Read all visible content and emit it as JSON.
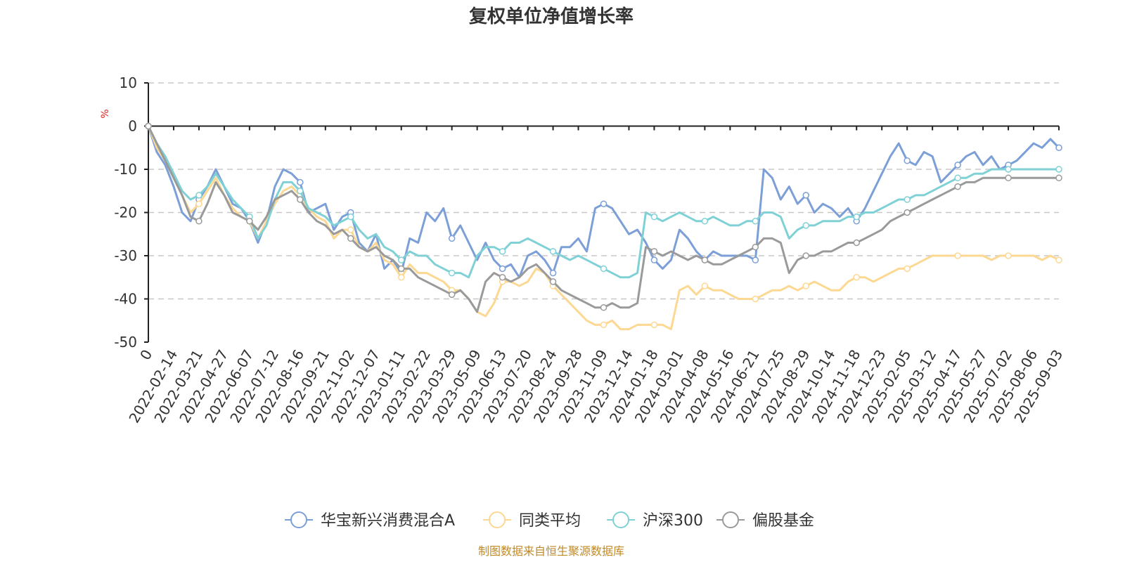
{
  "chart_data": {
    "type": "line",
    "title": "复权单位净值增长率",
    "ylabel": "%",
    "ylim": [
      -50,
      10
    ],
    "yticks": [
      10,
      0,
      -10,
      -20,
      -30,
      -40,
      -50
    ],
    "grid": true,
    "legend_position": "bottom",
    "x_labels": [
      "0",
      "2022-02-14",
      "2022-03-21",
      "2022-04-27",
      "2022-06-07",
      "2022-07-12",
      "2022-08-16",
      "2022-09-21",
      "2022-11-02",
      "2022-12-07",
      "2023-01-11",
      "2023-02-22",
      "2023-03-29",
      "2023-05-09",
      "2023-06-13",
      "2023-07-20",
      "2023-08-24",
      "2023-09-28",
      "2023-11-09",
      "2023-12-14",
      "2024-01-18",
      "2024-03-01",
      "2024-04-08",
      "2024-05-16",
      "2024-06-21",
      "2024-07-25",
      "2024-08-29",
      "2024-10-14",
      "2024-11-18",
      "2024-12-23",
      "2025-02-05",
      "2025-03-12",
      "2025-04-17",
      "2025-05-27",
      "2025-07-02",
      "2025-08-06",
      "2025-09-03"
    ],
    "series": [
      {
        "name": "华宝新兴消费混合A",
        "color": "#7b9fd6",
        "values": [
          0,
          -6,
          -9,
          -14,
          -20,
          -22,
          -17,
          -14,
          -10,
          -14,
          -18,
          -19,
          -22,
          -27,
          -22,
          -14,
          -10,
          -11,
          -13,
          -20,
          -19,
          -18,
          -24,
          -21,
          -20,
          -27,
          -29,
          -25,
          -33,
          -31,
          -34,
          -26,
          -27,
          -20,
          -22,
          -19,
          -26,
          -23,
          -27,
          -31,
          -27,
          -31,
          -33,
          -32,
          -35,
          -30,
          -29,
          -31,
          -34,
          -28,
          -28,
          -26,
          -29,
          -19,
          -18,
          -19,
          -22,
          -25,
          -24,
          -27,
          -31,
          -33,
          -31,
          -24,
          -26,
          -29,
          -31,
          -29,
          -30,
          -30,
          -30,
          -30,
          -31,
          -10,
          -12,
          -17,
          -14,
          -18,
          -16,
          -20,
          -18,
          -19,
          -21,
          -19,
          -22,
          -19,
          -15,
          -11,
          -7,
          -4,
          -8,
          -9,
          -6,
          -7,
          -13,
          -11,
          -9,
          -7,
          -6,
          -9,
          -7,
          -10,
          -9,
          -8,
          -6,
          -4,
          -5,
          -3,
          -5
        ]
      },
      {
        "name": "同类平均",
        "color": "#fcd892",
        "values": [
          0,
          -5,
          -8,
          -12,
          -16,
          -20,
          -18,
          -15,
          -12,
          -16,
          -19,
          -21,
          -22,
          -26,
          -22,
          -18,
          -15,
          -14,
          -16,
          -19,
          -21,
          -22,
          -26,
          -24,
          -24,
          -28,
          -29,
          -27,
          -31,
          -32,
          -35,
          -32,
          -34,
          -34,
          -35,
          -36,
          -38,
          -38,
          -40,
          -43,
          -44,
          -41,
          -36,
          -36,
          -37,
          -36,
          -33,
          -34,
          -37,
          -39,
          -41,
          -43,
          -45,
          -46,
          -46,
          -45,
          -47,
          -47,
          -46,
          -46,
          -46,
          -46,
          -47,
          -38,
          -37,
          -39,
          -37,
          -38,
          -38,
          -39,
          -40,
          -40,
          -40,
          -39,
          -38,
          -38,
          -37,
          -38,
          -37,
          -36,
          -37,
          -38,
          -38,
          -36,
          -35,
          -35,
          -36,
          -35,
          -34,
          -33,
          -33,
          -32,
          -31,
          -30,
          -30,
          -30,
          -30,
          -30,
          -30,
          -30,
          -31,
          -30,
          -30,
          -30,
          -30,
          -30,
          -31,
          -30,
          -31
        ]
      },
      {
        "name": "沪深300",
        "color": "#7fd1d6",
        "values": [
          0,
          -4,
          -7,
          -11,
          -15,
          -17,
          -16,
          -14,
          -11,
          -14,
          -17,
          -19,
          -21,
          -26,
          -23,
          -17,
          -13,
          -13,
          -15,
          -19,
          -20,
          -21,
          -23,
          -22,
          -21,
          -24,
          -26,
          -25,
          -28,
          -29,
          -31,
          -29,
          -30,
          -30,
          -32,
          -33,
          -34,
          -34,
          -35,
          -30,
          -28,
          -28,
          -29,
          -27,
          -27,
          -26,
          -27,
          -28,
          -29,
          -30,
          -31,
          -30,
          -31,
          -32,
          -33,
          -34,
          -35,
          -35,
          -34,
          -20,
          -21,
          -22,
          -21,
          -20,
          -21,
          -22,
          -22,
          -21,
          -22,
          -23,
          -23,
          -22,
          -22,
          -20,
          -20,
          -21,
          -26,
          -24,
          -23,
          -23,
          -22,
          -22,
          -22,
          -21,
          -21,
          -20,
          -20,
          -19,
          -18,
          -17,
          -17,
          -16,
          -16,
          -15,
          -14,
          -13,
          -12,
          -12,
          -11,
          -11,
          -10,
          -10,
          -10,
          -10,
          -10,
          -10,
          -10,
          -10,
          -10
        ]
      },
      {
        "name": "偏股基金",
        "color": "#9a9a9a",
        "values": [
          0,
          -4,
          -8,
          -12,
          -16,
          -21,
          -22,
          -18,
          -13,
          -16,
          -20,
          -21,
          -22,
          -24,
          -21,
          -17,
          -16,
          -15,
          -17,
          -20,
          -22,
          -23,
          -25,
          -24,
          -26,
          -28,
          -29,
          -28,
          -30,
          -31,
          -33,
          -33,
          -35,
          -36,
          -37,
          -38,
          -39,
          -38,
          -40,
          -43,
          -36,
          -34,
          -35,
          -36,
          -35,
          -33,
          -32,
          -34,
          -36,
          -38,
          -39,
          -40,
          -41,
          -42,
          -42,
          -41,
          -42,
          -42,
          -41,
          -28,
          -29,
          -30,
          -29,
          -30,
          -31,
          -30,
          -31,
          -32,
          -32,
          -31,
          -30,
          -29,
          -28,
          -26,
          -26,
          -27,
          -34,
          -31,
          -30,
          -30,
          -29,
          -29,
          -28,
          -27,
          -27,
          -26,
          -25,
          -24,
          -22,
          -21,
          -20,
          -19,
          -18,
          -17,
          -16,
          -15,
          -14,
          -13,
          -13,
          -12,
          -12,
          -12,
          -12,
          -12,
          -12,
          -12,
          -12,
          -12,
          -12
        ]
      }
    ]
  },
  "source_note": "制图数据来自恒生聚源数据库"
}
